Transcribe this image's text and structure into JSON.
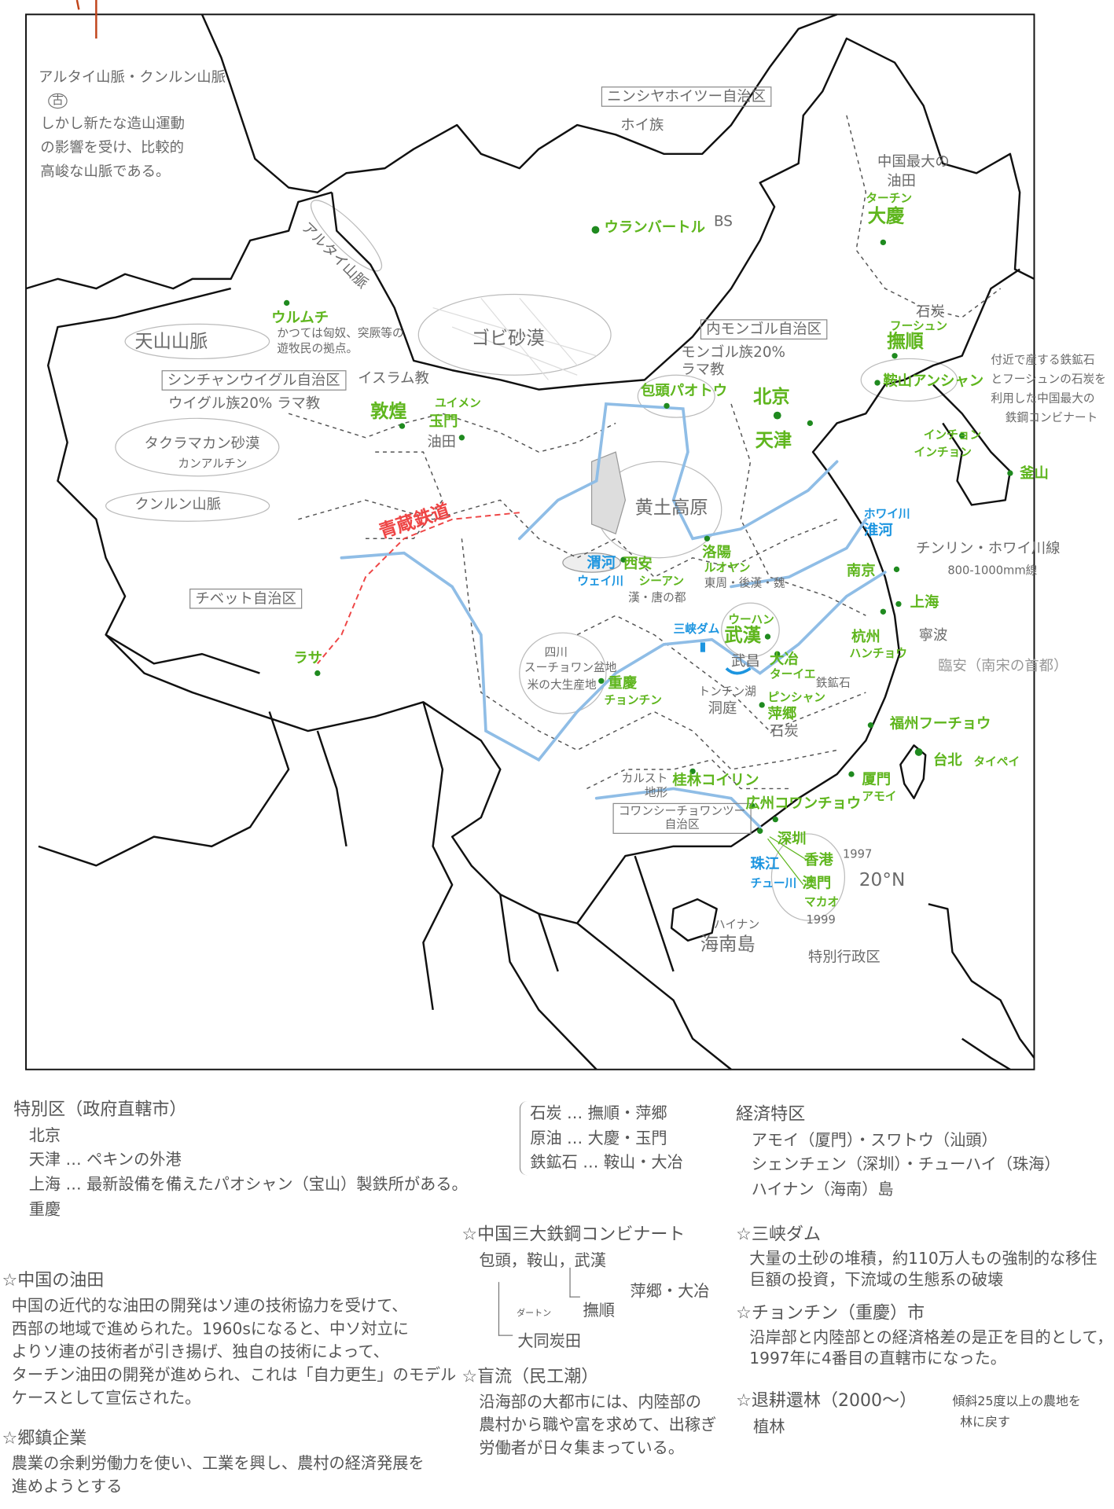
{
  "map": {
    "mountain_note": {
      "title": "アルタイ山脈・クンルン山脈",
      "mark": "古",
      "lines": [
        "しかし新たな造山運動",
        "の影響を受け、比較的",
        "高峻な山脈である。"
      ]
    },
    "ningxia_box": "ニンシヤホイツー自治区",
    "hui": "ホイ族",
    "ulaanbaatar": "ウランバートル",
    "bs": "BS",
    "altai": "アルタイ山脈",
    "tianshan": "天山山脈",
    "urumqi": "ウルムチ",
    "urumqi_note": [
      "かつては匈奴、突厥等の",
      "遊牧民の拠点。"
    ],
    "xinjiang_box": "シンチャンウイグル自治区",
    "islam": "イスラム教",
    "uyghur": "ウイグル族20% ラマ教",
    "taklamakan": "タクラマカン砂漠",
    "taklamakan_kana": "カンアルチン",
    "kunlun": "クンルン山脈",
    "gobi": "ゴビ砂漠",
    "inner_mongolia_box": "内モンゴル自治区",
    "mongol": "モンゴル族20%",
    "lama": "ラマ教",
    "daqing_note": [
      "中国最大の",
      "油田"
    ],
    "daqing_kana": "ターチン",
    "daqing": "大慶",
    "coal": "石炭",
    "fushun_kana": "フーシュン",
    "fushun": "撫順",
    "anshan": "鞍山アンシャン",
    "anshan_note": [
      "付近で産する鉄鉱石",
      "とフーシュンの石炭を",
      "利用した中国最大の",
      "鉄鋼コンビナート"
    ],
    "dunhuang": "敦煌",
    "yumen_kana": "ユイメン",
    "yumen": "玉門",
    "oilfield": "油田",
    "baotou": "包頭パオトウ",
    "beijing": "北京",
    "tianjin": "天津",
    "incheon": [
      "インチョン",
      "インチョン"
    ],
    "busan": "釜山",
    "loess": "黄土高原",
    "qingzang": "青蔵鉄道",
    "tibet_box": "チベット自治区",
    "lhasa": "ラサ",
    "weihe": "渭河",
    "weihe_kana": "ウェイ川",
    "xian": "西安",
    "xian_kana": "シーアン",
    "xian_note": "漢・唐の都",
    "luoyang": "洛陽",
    "luoyang_kana": "ルオヤン",
    "luoyang_note": "東周・後漢・魏",
    "huaihe_kana": "ホワイ川",
    "huaihe": "淮河",
    "qinling": "チンリン・ホワイ川線",
    "qinling_mm": "800-1000mm線",
    "nanjing": "南京",
    "shanghai": "上海",
    "sanxia": "三峡ダム",
    "wuhan_kana": "ウーハン",
    "wuhan": "武漢",
    "sichuan": [
      "四川",
      "スーチョワン盆地",
      "米の大生産地"
    ],
    "chongqing": "重慶",
    "chongqing_kana": "チョンチン",
    "wuchang": "武昌",
    "daye": "大冶",
    "daye_kana": "ターイエ",
    "iron_ore": "鉄鉱石",
    "dongting_kana": "トンチン湖",
    "dongting": "洞庭",
    "pingxiang_kana": "ピンシャン",
    "pingxiang": "萍郷",
    "pingxiang_coal": "石炭",
    "hangzhou": "杭州",
    "hangzhou_kana": "ハンチョウ",
    "ningbo": "寧波",
    "linan": "臨安（南宋の首都）",
    "fuzhou": "福州フーチョウ",
    "taipei": "台北",
    "taipei_kana": "タイペイ",
    "xiamen": "厦門",
    "xiamen_kana": "アモイ",
    "karst": [
      "カルスト",
      "地形"
    ],
    "guilin": "桂林コイリン",
    "guangxi_box": [
      "コワンシーチョワンツー",
      "自治区"
    ],
    "guangzhou": "広州コワンチョウ",
    "shenzhen": "深圳",
    "hongkong": "香港",
    "y1997": "1997",
    "lat": "20°N",
    "zhujiang": "珠江",
    "zhujiang_kana": "チュー川",
    "macau": "澳門",
    "macau_kana": "マカオ",
    "y1999": "1999",
    "hainan_kana": "ハイナン",
    "hainan": "海南島",
    "sar": "特別行政区"
  },
  "notes": {
    "municipalities": {
      "title": "特別区（政府直轄市）",
      "lines": [
        "北京",
        "天津 … ペキンの外港",
        "上海 … 最新設備を備えたパオシャン（宝山）製鉄所がある。",
        "重慶"
      ]
    },
    "oilfields": {
      "title": "☆中国の油田",
      "lines": [
        "中国の近代的な油田の開発はソ連の技術協力を受けて、",
        "西部の地域で進められた。1960sになると、中ソ対立に",
        "よりソ連の技術者が引き揚げ、独自の技術によって、",
        "ターチン油田の開発が進められ、これは「自力更生」のモデル",
        "ケースとして宣伝された。"
      ]
    },
    "township": {
      "title": "☆郷鎮企業",
      "lines": [
        "農業の余剰労働力を使い、工業を興し、農村の経済発展を",
        "進めようとする"
      ]
    },
    "resources": [
      "石炭 … 撫順・萍郷",
      "原油 … 大慶・玉門",
      "鉄鉱石 … 鞍山・大冶"
    ],
    "sez": {
      "title": "経済特区",
      "lines": [
        "アモイ（厦門）・スワトウ（汕頭）",
        "シェンチェン（深圳）・チューハイ（珠海）",
        "ハイナン（海南）島"
      ]
    },
    "steel": {
      "title": "☆中国三大鉄鋼コンビナート",
      "cities": "包頭，鞍山，武漢",
      "wuhan_src": "萍郷・大冶",
      "anshan_src": "撫順",
      "baotou_src_kana": "ダートン",
      "baotou_src": "大同炭田"
    },
    "migration": {
      "title": "☆盲流（民工潮）",
      "lines": [
        "沿海部の大都市には、内陸部の",
        "農村から職や富を求めて、出稼ぎ",
        "労働者が日々集まっている。"
      ]
    },
    "three_gorges": {
      "title": "☆三峡ダム",
      "lines": [
        "大量の土砂の堆積，約110万人もの強制的な移住",
        "巨額の投資，下流域の生態系の破壊"
      ]
    },
    "chongqing": {
      "title": "☆チョンチン（重慶）市",
      "lines": [
        "沿岸部と内陸部との経済格差の是正を目的として，",
        "1997年に4番目の直轄市になった。"
      ]
    },
    "reforest": {
      "title": "☆退耕還林（2000～）",
      "sub": "植林",
      "aside": [
        "傾斜25度以上の農地を",
        "林に戻す"
      ]
    }
  },
  "colors": {
    "city": "#5fb61e",
    "river": "#1c95e0",
    "railway": "#ee4646",
    "pencil": "#6a6a6a",
    "border": "#111111"
  }
}
